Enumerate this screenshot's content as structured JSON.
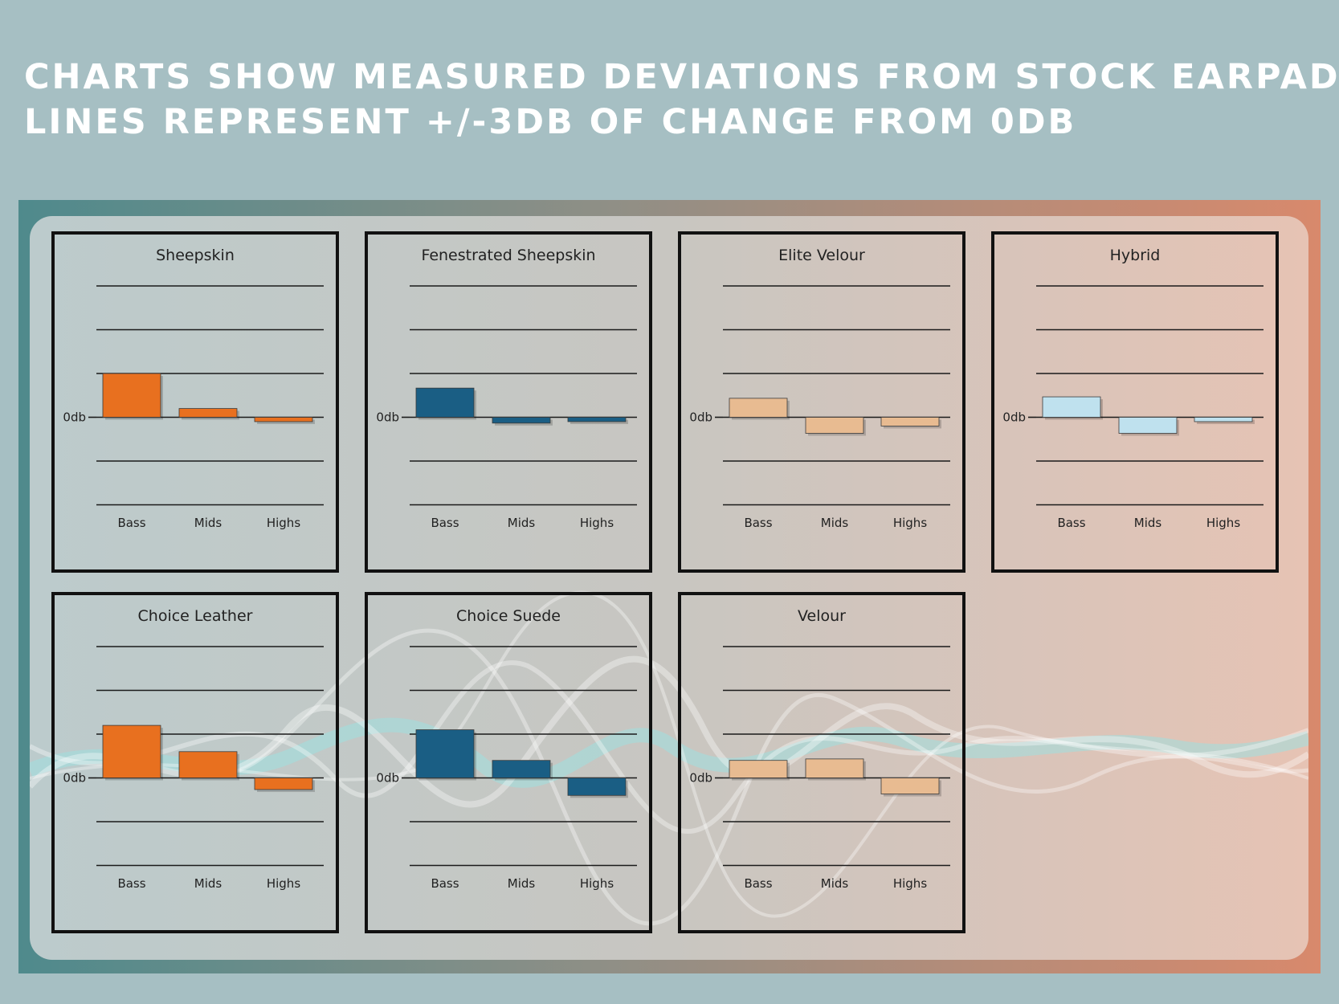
{
  "headline": {
    "line1": "Charts show measured deviations from stock earpads.",
    "line2": "Lines represent +/-3db of change from 0db"
  },
  "chart_data": [
    {
      "type": "bar",
      "title": "Sheepskin",
      "categories": [
        "Bass",
        "Mids",
        "Highs"
      ],
      "values": [
        3.0,
        0.6,
        -0.3
      ],
      "zero_label": "0db",
      "ylim": [
        -6,
        9
      ],
      "color": "#e8701f"
    },
    {
      "type": "bar",
      "title": "Fenestrated Sheepskin",
      "categories": [
        "Bass",
        "Mids",
        "Highs"
      ],
      "values": [
        2.0,
        -0.4,
        -0.3
      ],
      "zero_label": "0db",
      "ylim": [
        -6,
        9
      ],
      "color": "#1a5e84"
    },
    {
      "type": "bar",
      "title": "Elite Velour",
      "categories": [
        "Bass",
        "Mids",
        "Highs"
      ],
      "values": [
        1.3,
        -1.1,
        -0.6
      ],
      "zero_label": "0db",
      "ylim": [
        -6,
        9
      ],
      "color": "#e8bb91"
    },
    {
      "type": "bar",
      "title": "Hybrid",
      "categories": [
        "Bass",
        "Mids",
        "Highs"
      ],
      "values": [
        1.4,
        -1.1,
        -0.3
      ],
      "zero_label": "0db",
      "ylim": [
        -6,
        9
      ],
      "color": "#bfe1ee"
    },
    {
      "type": "bar",
      "title": "Choice Leather",
      "categories": [
        "Bass",
        "Mids",
        "Highs"
      ],
      "values": [
        3.6,
        1.8,
        -0.8
      ],
      "zero_label": "0db",
      "ylim": [
        -6,
        9
      ],
      "color": "#e8701f"
    },
    {
      "type": "bar",
      "title": "Choice Suede",
      "categories": [
        "Bass",
        "Mids",
        "Highs"
      ],
      "values": [
        3.3,
        1.2,
        -1.2
      ],
      "zero_label": "0db",
      "ylim": [
        -6,
        9
      ],
      "color": "#1a5e84"
    },
    {
      "type": "bar",
      "title": "Velour",
      "categories": [
        "Bass",
        "Mids",
        "Highs"
      ],
      "values": [
        1.2,
        1.3,
        -1.1
      ],
      "zero_label": "0db",
      "ylim": [
        -6,
        9
      ],
      "color": "#e8bb91"
    }
  ]
}
